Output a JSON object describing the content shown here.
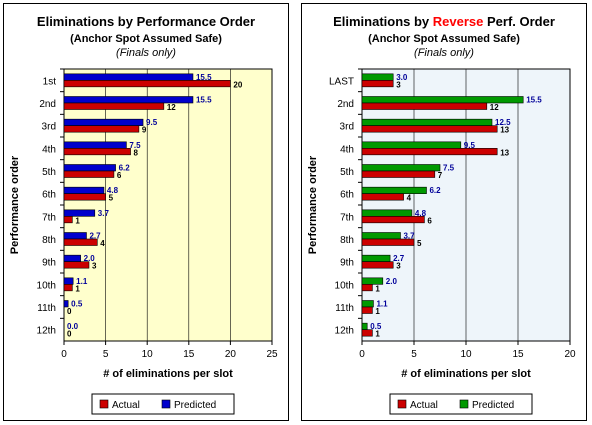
{
  "chart_data": [
    {
      "type": "bar",
      "orientation": "horizontal",
      "title": "Eliminations by Performance Order",
      "title_parts": [
        {
          "text": "Eliminations by Performance Order",
          "color": "#000000"
        }
      ],
      "subtitle": "(Anchor Spot Assumed Safe)",
      "note": "(Finals only)",
      "xlabel": "# of eliminations per slot",
      "ylabel": "Performance order",
      "categories": [
        "1st",
        "2nd",
        "3rd",
        "4th",
        "5th",
        "6th",
        "7th",
        "8th",
        "9th",
        "10th",
        "11th",
        "12th"
      ],
      "series": [
        {
          "name": "Actual",
          "color": "#cc0000",
          "label_color": "#000000",
          "values": [
            20,
            12,
            9,
            8,
            6,
            5,
            1,
            4,
            3,
            1,
            0,
            0
          ],
          "labels": [
            "20",
            "12",
            "9",
            "8",
            "6",
            "5",
            "1",
            "4",
            "3",
            "1",
            "0",
            "0"
          ]
        },
        {
          "name": "Predicted",
          "color": "#0000cc",
          "label_color": "#000099",
          "values": [
            15.5,
            15.5,
            9.5,
            7.5,
            6.2,
            4.8,
            3.7,
            2.7,
            2.0,
            1.1,
            0.5,
            0.0
          ],
          "labels": [
            "15.5",
            "15.5",
            "9.5",
            "7.5",
            "6.2",
            "4.8",
            "3.7",
            "2.7",
            "2.0",
            "1.1",
            "0.5",
            "0.0"
          ]
        }
      ],
      "xlim": [
        0,
        25
      ],
      "xticks": [
        0,
        5,
        10,
        15,
        20,
        25
      ],
      "grid": true,
      "plot_background": "#ffffcc",
      "legend_position": "bottom"
    },
    {
      "type": "bar",
      "orientation": "horizontal",
      "title": "Eliminations by Reverse Perf. Order",
      "title_parts": [
        {
          "text": "Eliminations by ",
          "color": "#000000"
        },
        {
          "text": "Reverse",
          "color": "#ff0000"
        },
        {
          "text": " Perf. Order",
          "color": "#000000"
        }
      ],
      "subtitle": "(Anchor Spot Assumed Safe)",
      "note": "(Finals only)",
      "xlabel": "# of eliminations per slot",
      "ylabel": "Performance order",
      "categories": [
        "LAST",
        "2nd",
        "3rd",
        "4th",
        "5th",
        "6th",
        "7th",
        "8th",
        "9th",
        "10th",
        "11th",
        "12th"
      ],
      "series": [
        {
          "name": "Actual",
          "color": "#cc0000",
          "label_color": "#000000",
          "values": [
            3,
            12,
            13,
            13,
            7,
            4,
            6,
            5,
            3,
            1,
            1,
            1
          ],
          "labels": [
            "3",
            "12",
            "13",
            "13",
            "7",
            "4",
            "6",
            "5",
            "3",
            "1",
            "1",
            "1"
          ]
        },
        {
          "name": "Predicted",
          "color": "#009900",
          "label_color": "#000099",
          "values": [
            3.0,
            15.5,
            12.5,
            9.5,
            7.5,
            6.2,
            4.8,
            3.7,
            2.7,
            2.0,
            1.1,
            0.5
          ],
          "labels": [
            "3.0",
            "15.5",
            "12.5",
            "9.5",
            "7.5",
            "6.2",
            "4.8",
            "3.7",
            "2.7",
            "2.0",
            "1.1",
            "0.5"
          ]
        }
      ],
      "xlim": [
        0,
        20
      ],
      "xticks": [
        0,
        5,
        10,
        15,
        20
      ],
      "grid": true,
      "plot_background": "#eef5fa",
      "legend_position": "bottom"
    }
  ]
}
